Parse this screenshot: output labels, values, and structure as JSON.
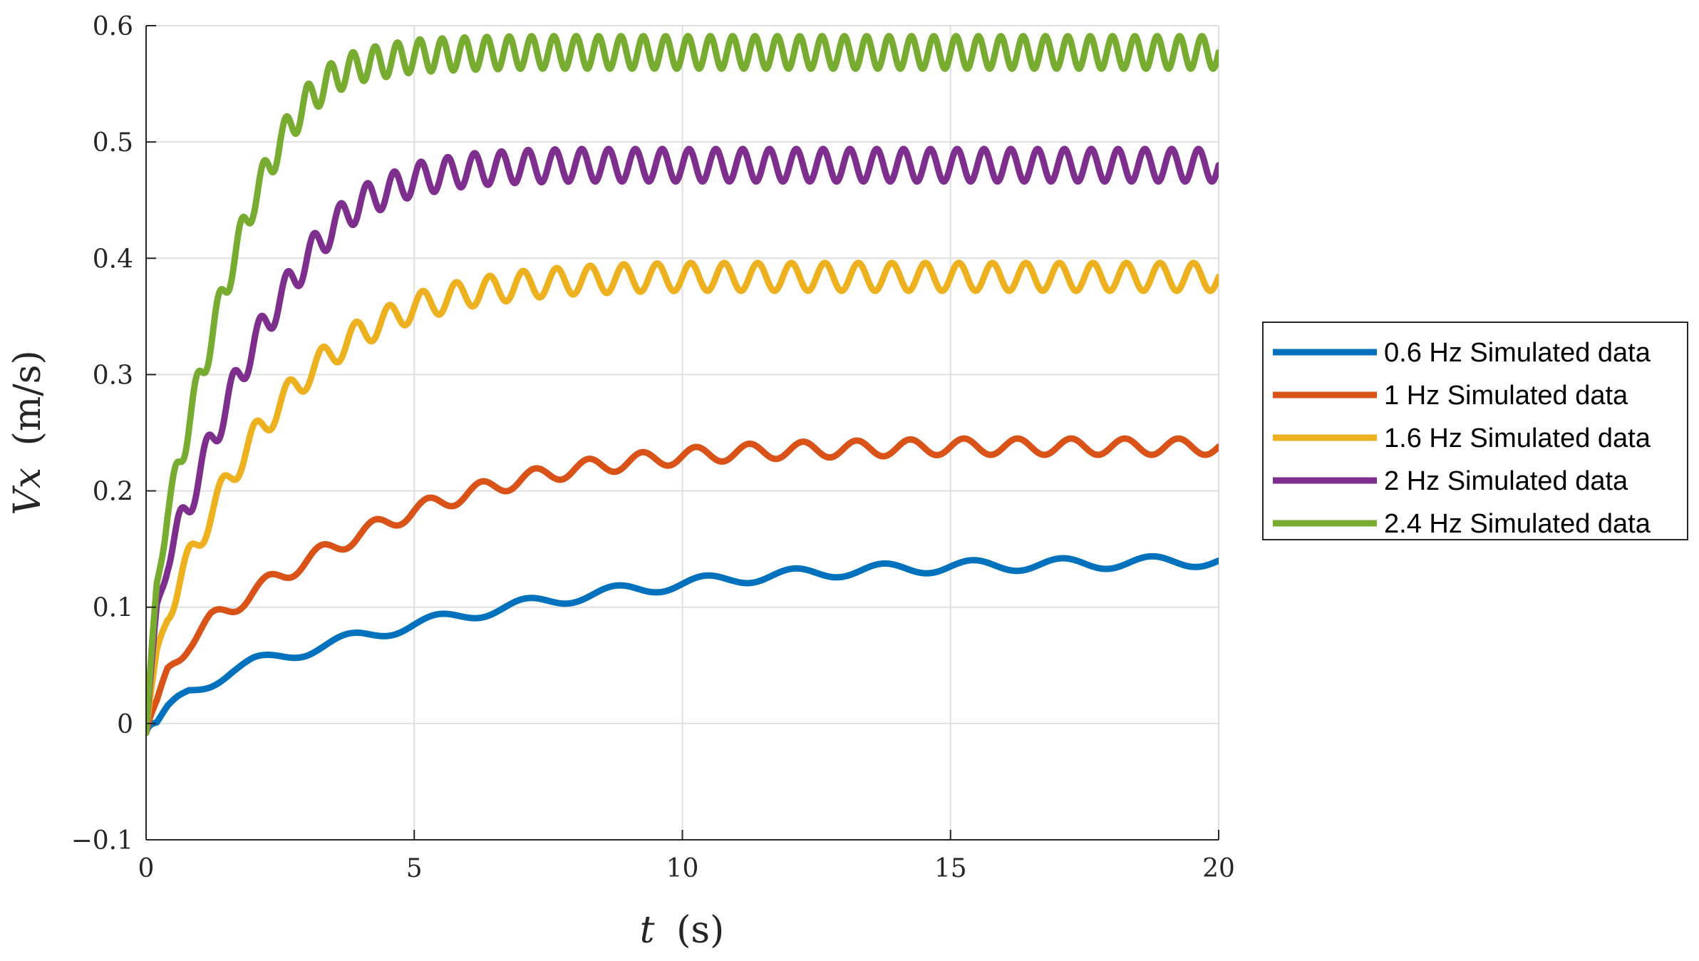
{
  "chart_data": {
    "type": "line",
    "title": "",
    "xlabel_var": "t",
    "xlabel_unit": "(s)",
    "ylabel_var": "Vx",
    "ylabel_unit": "(m/s)",
    "xlim": [
      0,
      20
    ],
    "ylim": [
      -0.1,
      0.6
    ],
    "xticks": [
      0,
      5,
      10,
      15,
      20
    ],
    "xtick_labels": [
      "0",
      "5",
      "10",
      "15",
      "20"
    ],
    "yticks": [
      -0.1,
      0,
      0.1,
      0.2,
      0.3,
      0.4,
      0.5,
      0.6
    ],
    "ytick_labels": [
      "−0.1",
      "0",
      "0.1",
      "0.2",
      "0.3",
      "0.4",
      "0.5",
      "0.6"
    ],
    "grid": true,
    "legend_position": "outside-right",
    "series": [
      {
        "name": "0.6 Hz Simulated data",
        "color": "#0072BD",
        "freq_hz": 0.6,
        "x": [
          0,
          0.2,
          0.4,
          0.8,
          1.2,
          1.6,
          2,
          2.5,
          3,
          3.5,
          4,
          5,
          6,
          7,
          8,
          9,
          10,
          11,
          12,
          13,
          14,
          15,
          16,
          17,
          18,
          19,
          20
        ],
        "y": [
          0,
          0.0,
          0.012,
          0.028,
          0.036,
          0.045,
          0.052,
          0.058,
          0.063,
          0.069,
          0.075,
          0.085,
          0.094,
          0.102,
          0.109,
          0.115,
          0.12,
          0.125,
          0.128,
          0.131,
          0.133,
          0.135,
          0.136,
          0.137,
          0.138,
          0.139,
          0.14
        ],
        "ripple_amplitude": 0.005
      },
      {
        "name": "1 Hz Simulated data",
        "color": "#D95319",
        "freq_hz": 1.0,
        "x": [
          0,
          0.2,
          0.4,
          0.8,
          1.2,
          1.6,
          2,
          2.5,
          3,
          3.5,
          4,
          5,
          6,
          7,
          8,
          9,
          10,
          11,
          12,
          13,
          14,
          15,
          16,
          17,
          18,
          19,
          20
        ],
        "y": [
          0,
          0.018,
          0.045,
          0.07,
          0.088,
          0.1,
          0.113,
          0.127,
          0.14,
          0.152,
          0.163,
          0.183,
          0.198,
          0.21,
          0.219,
          0.225,
          0.23,
          0.233,
          0.235,
          0.236,
          0.237,
          0.238,
          0.238,
          0.238,
          0.238,
          0.238,
          0.238
        ],
        "ripple_amplitude": 0.007
      },
      {
        "name": "1.6 Hz Simulated data",
        "color": "#EDB120",
        "freq_hz": 1.6,
        "x": [
          0,
          0.2,
          0.4,
          0.8,
          1.2,
          1.6,
          2,
          2.5,
          3,
          3.5,
          4,
          5,
          6,
          7,
          8,
          9,
          10,
          11,
          12,
          13,
          14,
          15,
          16,
          17,
          18,
          19,
          20
        ],
        "y": [
          0,
          0.06,
          0.095,
          0.14,
          0.18,
          0.215,
          0.245,
          0.275,
          0.3,
          0.32,
          0.336,
          0.358,
          0.37,
          0.377,
          0.381,
          0.383,
          0.384,
          0.384,
          0.384,
          0.384,
          0.384,
          0.384,
          0.384,
          0.384,
          0.384,
          0.384,
          0.384
        ],
        "ripple_amplitude": 0.012
      },
      {
        "name": "2 Hz Simulated data",
        "color": "#7E2F8E",
        "freq_hz": 2.0,
        "x": [
          0,
          0.2,
          0.4,
          0.8,
          1.2,
          1.6,
          2,
          2.5,
          3,
          3.5,
          4,
          5,
          6,
          7,
          8,
          9,
          10,
          11,
          12,
          13,
          14,
          15,
          16,
          17,
          18,
          19,
          20
        ],
        "y": [
          0,
          0.1,
          0.14,
          0.19,
          0.24,
          0.285,
          0.325,
          0.365,
          0.4,
          0.428,
          0.448,
          0.468,
          0.476,
          0.479,
          0.48,
          0.48,
          0.48,
          0.48,
          0.48,
          0.48,
          0.48,
          0.48,
          0.48,
          0.48,
          0.48,
          0.48,
          0.48
        ],
        "ripple_amplitude": 0.014
      },
      {
        "name": "2.4 Hz Simulated data",
        "color": "#77AC30",
        "freq_hz": 2.4,
        "x": [
          0,
          0.2,
          0.4,
          0.8,
          1.2,
          1.6,
          2,
          2.5,
          3,
          3.5,
          4,
          5,
          6,
          7,
          8,
          9,
          10,
          11,
          12,
          13,
          14,
          15,
          16,
          17,
          18,
          19,
          20
        ],
        "y": [
          0,
          0.12,
          0.18,
          0.26,
          0.33,
          0.395,
          0.45,
          0.5,
          0.535,
          0.556,
          0.566,
          0.574,
          0.576,
          0.577,
          0.577,
          0.577,
          0.577,
          0.577,
          0.577,
          0.577,
          0.577,
          0.577,
          0.577,
          0.577,
          0.577,
          0.577,
          0.577
        ],
        "ripple_amplitude": 0.014
      }
    ]
  }
}
